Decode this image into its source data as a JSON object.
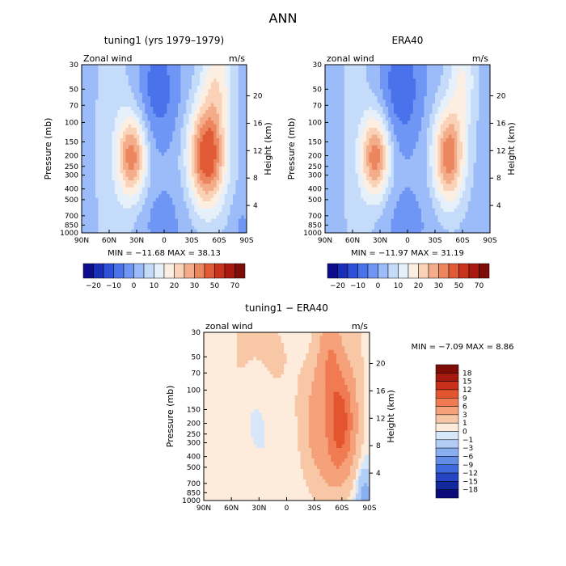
{
  "figure_title": "ANN",
  "chart_data": [
    {
      "type": "heatmap",
      "title": "tuning1 (yrs 1979–1979)",
      "field_label": "Zonal wind",
      "units": "m/s",
      "ylabel": "Pressure (mb)",
      "ylabel_right": "Height (km)",
      "x_ticks": [
        "90N",
        "60N",
        "30N",
        "0",
        "30S",
        "60S",
        "90S"
      ],
      "y_ticks": [
        "30",
        "50",
        "70",
        "100",
        "150",
        "200",
        "250",
        "300",
        "400",
        "500",
        "700",
        "850",
        "1000"
      ],
      "y_ticks_right": [
        "4",
        "8",
        "12",
        "16",
        "20"
      ],
      "stats": "MIN = −11.68   MAX =  38.13",
      "colorbar_levels": [
        "−20",
        "−10",
        "0",
        "10",
        "20",
        "30",
        "50",
        "70"
      ],
      "features": [
        {
          "kind": "westerly jet",
          "lat": -45,
          "p": 200,
          "u": 38
        },
        {
          "kind": "westerly jet",
          "lat": 35,
          "p": 200,
          "u": 30
        },
        {
          "kind": "tropical easterlies",
          "lat": 5,
          "p": 50,
          "u": -12
        }
      ]
    },
    {
      "type": "heatmap",
      "title": "ERA40",
      "field_label": "zonal wind",
      "units": "m/s",
      "ylabel": "Pressure (mb)",
      "ylabel_right": "Height (km)",
      "x_ticks": [
        "90N",
        "60N",
        "30N",
        "0",
        "30S",
        "60S",
        "90S"
      ],
      "y_ticks": [
        "30",
        "50",
        "70",
        "100",
        "150",
        "200",
        "250",
        "300",
        "400",
        "500",
        "700",
        "850",
        "1000"
      ],
      "y_ticks_right": [
        "4",
        "8",
        "12",
        "16",
        "20"
      ],
      "stats": "MIN = −11.97   MAX =  31.19",
      "colorbar_levels": [
        "−20",
        "−10",
        "0",
        "10",
        "20",
        "30",
        "50",
        "70"
      ],
      "features": [
        {
          "kind": "westerly jet",
          "lat": -45,
          "p": 200,
          "u": 31
        },
        {
          "kind": "westerly jet",
          "lat": 35,
          "p": 200,
          "u": 30
        },
        {
          "kind": "tropical easterlies",
          "lat": 5,
          "p": 50,
          "u": -12
        }
      ]
    },
    {
      "type": "heatmap",
      "title": "tuning1 − ERA40",
      "field_label": "zonal wind",
      "units": "m/s",
      "ylabel": "Pressure (mb)",
      "ylabel_right": "Height (km)",
      "x_ticks": [
        "90N",
        "60N",
        "30N",
        "0",
        "30S",
        "60S",
        "90S"
      ],
      "y_ticks": [
        "30",
        "50",
        "70",
        "100",
        "150",
        "200",
        "250",
        "300",
        "400",
        "500",
        "700",
        "850",
        "1000"
      ],
      "y_ticks_right": [
        "4",
        "8",
        "12",
        "16",
        "20"
      ],
      "stats": "MIN =   −7.09   MAX =   8.86",
      "colorbar_levels": [
        "18",
        "15",
        "12",
        "9",
        "6",
        "3",
        "1",
        "0",
        "−1",
        "−3",
        "−6",
        "−9",
        "−12",
        "−15",
        "−18"
      ]
    }
  ],
  "colors": {
    "full_scale": [
      "#0c0c8c",
      "#1a2fb8",
      "#2e4fd8",
      "#4a72ea",
      "#6f96f4",
      "#9bbcf8",
      "#c5dbfa",
      "#e6f0fb",
      "#fdeee2",
      "#f9d2b8",
      "#f3ad8a",
      "#ec865f",
      "#e15a36",
      "#c9321c",
      "#a81a10",
      "#7d0d06"
    ],
    "diff_scale": [
      "#7d0d06",
      "#a41a10",
      "#c8301c",
      "#e3552f",
      "#f07a52",
      "#f5a17a",
      "#f8c7a6",
      "#fdebdc",
      "#d7e7fa",
      "#b2cdf6",
      "#8aaff0",
      "#628de7",
      "#3d69dc",
      "#2545c2",
      "#14289d",
      "#0a0a7a"
    ]
  }
}
